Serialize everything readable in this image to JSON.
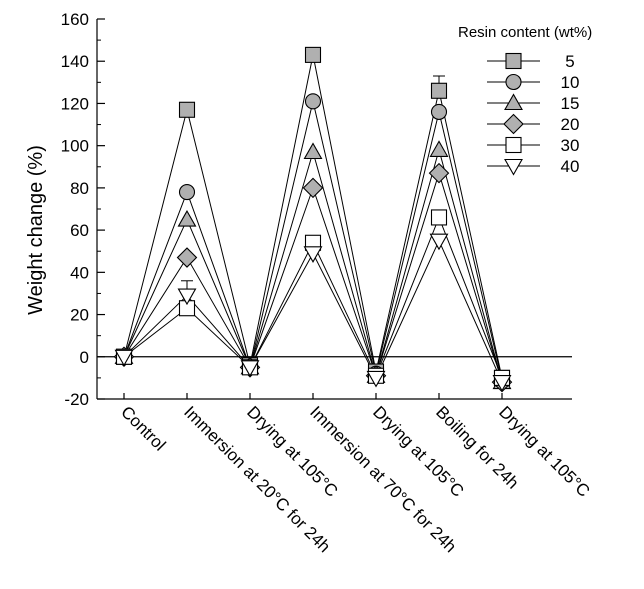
{
  "chart_data": {
    "type": "line",
    "ylabel": "Weight change (%)",
    "xlabel": "",
    "ylim": [
      -20,
      160
    ],
    "yticks": [
      -20,
      0,
      20,
      40,
      60,
      80,
      100,
      120,
      140,
      160
    ],
    "categories": [
      "Control",
      "Immersion at 20°C for 24h",
      "Drying at 105°C",
      "Immersion at 70°C for 24h",
      "Drying at 105°C",
      "Boiling for 24h",
      "Drying at 105°C"
    ],
    "legend": {
      "title": "Resin content (wt%)",
      "position": "top-right"
    },
    "series": [
      {
        "name": "5",
        "marker": "square",
        "fill": "#b0b0b0",
        "values": [
          0,
          117,
          -4,
          143,
          -7,
          126,
          -10
        ],
        "errors": [
          0,
          3,
          0,
          3,
          0,
          7,
          0
        ]
      },
      {
        "name": "10",
        "marker": "circle",
        "fill": "#b0b0b0",
        "values": [
          0,
          78,
          -5,
          121,
          -8,
          116,
          -11
        ],
        "errors": [
          0,
          0,
          0,
          0,
          0,
          0,
          0
        ]
      },
      {
        "name": "15",
        "marker": "triangle-up",
        "fill": "#b0b0b0",
        "values": [
          0,
          65,
          -5,
          97,
          -9,
          98,
          -12
        ],
        "errors": [
          0,
          0,
          0,
          0,
          0,
          0,
          0
        ]
      },
      {
        "name": "20",
        "marker": "diamond",
        "fill": "#b0b0b0",
        "values": [
          0,
          47,
          -5,
          80,
          -9,
          87,
          -12
        ],
        "errors": [
          0,
          0,
          0,
          0,
          0,
          0,
          0
        ]
      },
      {
        "name": "30",
        "marker": "square",
        "fill": "#ffffff",
        "values": [
          0,
          23,
          -5,
          54,
          -9,
          66,
          -10
        ],
        "errors": [
          0,
          3,
          0,
          0,
          0,
          2,
          0
        ]
      },
      {
        "name": "40",
        "marker": "triangle-down",
        "fill": "#ffffff",
        "values": [
          0,
          29,
          -5,
          49,
          -10,
          55,
          -12
        ],
        "errors": [
          0,
          7,
          0,
          0,
          0,
          3,
          0
        ]
      }
    ]
  }
}
